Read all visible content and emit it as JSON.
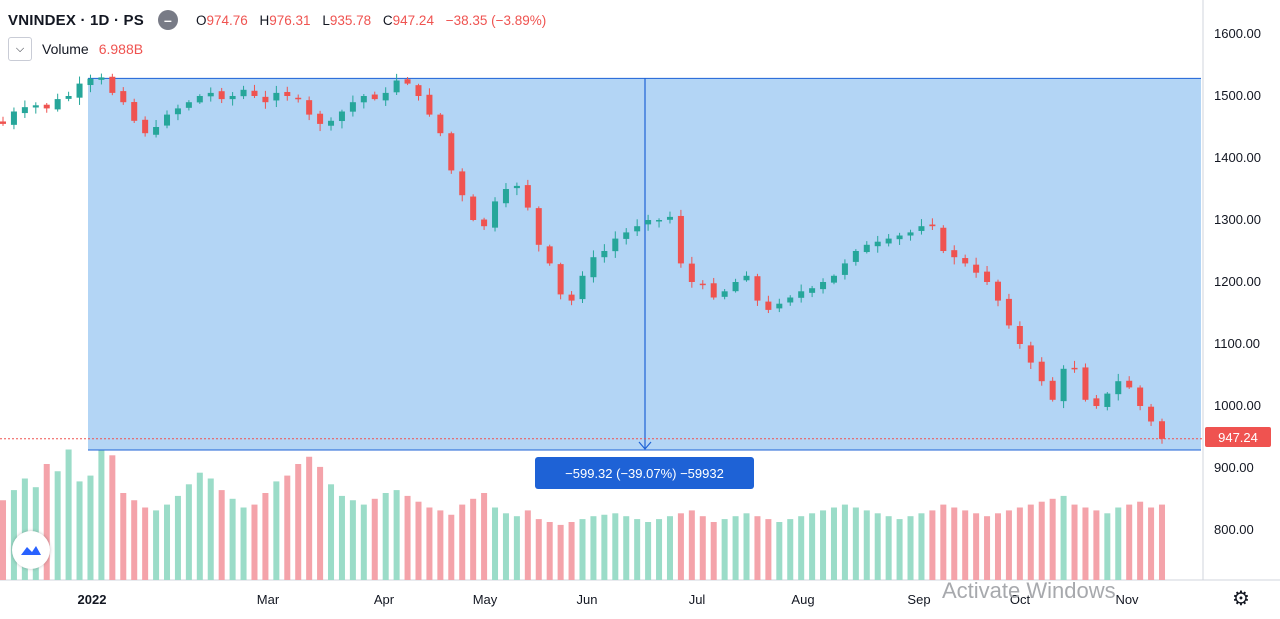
{
  "legend": {
    "symbol": "VNINDEX · 1D · PS",
    "ohlc": [
      {
        "key": "O",
        "value": "974.76"
      },
      {
        "key": "H",
        "value": "976.31"
      },
      {
        "key": "L",
        "value": "935.78"
      },
      {
        "key": "C",
        "value": "947.24"
      }
    ],
    "change": "−38.35 (−3.89%)",
    "volume_label": "Volume",
    "volume_value": "6.988B"
  },
  "measure_label": "−599.32 (−39.07%) −59932",
  "last_price_label": "947.24",
  "watermark_text": "Activate Windows",
  "colors": {
    "up": "#26a69a",
    "down": "#ef5350",
    "vol_up": "#9bdcc8",
    "vol_down": "#f4a3aa",
    "measure_fill": "#b3d5f5",
    "measure_line": "#1e62d6",
    "price_line": "#ef5350"
  },
  "chart_data": {
    "type": "candlestick",
    "title": "VNINDEX · 1D · PS",
    "y_ticks": [
      "1600.00",
      "1500.00",
      "1400.00",
      "1300.00",
      "1200.00",
      "1100.00",
      "1000.00",
      "900.00",
      "800.00"
    ],
    "ylim": [
      700,
      1650
    ],
    "x_ticks": [
      {
        "label": "2022",
        "bold": true
      },
      {
        "label": "Mar",
        "bold": false
      },
      {
        "label": "Apr",
        "bold": false
      },
      {
        "label": "May",
        "bold": false
      },
      {
        "label": "Jun",
        "bold": false
      },
      {
        "label": "Jul",
        "bold": false
      },
      {
        "label": "Aug",
        "bold": false
      },
      {
        "label": "Sep",
        "bold": false
      },
      {
        "label": "Oct",
        "bold": false
      },
      {
        "label": "Nov",
        "bold": false
      }
    ],
    "last_price": 947.24,
    "measure": {
      "start": 1528.4,
      "end": 929.08,
      "change": -599.32,
      "change_pct": -39.07
    },
    "close_path": [
      1455,
      1475,
      1482,
      1485,
      1480,
      1495,
      1500,
      1520,
      1528,
      1530,
      1505,
      1490,
      1460,
      1440,
      1450,
      1470,
      1480,
      1490,
      1500,
      1505,
      1495,
      1500,
      1510,
      1500,
      1490,
      1505,
      1500,
      1495,
      1470,
      1455,
      1460,
      1475,
      1490,
      1500,
      1495,
      1505,
      1525,
      1520,
      1500,
      1470,
      1440,
      1380,
      1340,
      1300,
      1290,
      1330,
      1350,
      1355,
      1320,
      1260,
      1230,
      1180,
      1170,
      1210,
      1240,
      1250,
      1270,
      1280,
      1290,
      1300,
      1300,
      1305,
      1230,
      1200,
      1195,
      1175,
      1185,
      1200,
      1210,
      1170,
      1155,
      1165,
      1175,
      1185,
      1190,
      1200,
      1210,
      1230,
      1250,
      1260,
      1265,
      1270,
      1275,
      1280,
      1290,
      1290,
      1250,
      1240,
      1230,
      1215,
      1200,
      1170,
      1130,
      1100,
      1070,
      1040,
      1010,
      1060,
      1060,
      1010,
      1000,
      1020,
      1040,
      1030,
      1000,
      975,
      947
    ],
    "volume_rel": [
      0.55,
      0.62,
      0.7,
      0.64,
      0.8,
      0.75,
      0.9,
      0.68,
      0.72,
      0.98,
      0.86,
      0.6,
      0.55,
      0.5,
      0.48,
      0.52,
      0.58,
      0.66,
      0.74,
      0.7,
      0.62,
      0.56,
      0.5,
      0.52,
      0.6,
      0.68,
      0.72,
      0.8,
      0.85,
      0.78,
      0.66,
      0.58,
      0.55,
      0.52,
      0.56,
      0.6,
      0.62,
      0.58,
      0.54,
      0.5,
      0.48,
      0.45,
      0.52,
      0.56,
      0.6,
      0.5,
      0.46,
      0.44,
      0.48,
      0.42,
      0.4,
      0.38,
      0.4,
      0.42,
      0.44,
      0.45,
      0.46,
      0.44,
      0.42,
      0.4,
      0.42,
      0.44,
      0.46,
      0.48,
      0.44,
      0.4,
      0.42,
      0.44,
      0.46,
      0.44,
      0.42,
      0.4,
      0.42,
      0.44,
      0.46,
      0.48,
      0.5,
      0.52,
      0.5,
      0.48,
      0.46,
      0.44,
      0.42,
      0.44,
      0.46,
      0.48,
      0.52,
      0.5,
      0.48,
      0.46,
      0.44,
      0.46,
      0.48,
      0.5,
      0.52,
      0.54,
      0.56,
      0.58,
      0.52,
      0.5,
      0.48,
      0.46,
      0.5,
      0.52,
      0.54,
      0.5,
      0.52
    ]
  }
}
